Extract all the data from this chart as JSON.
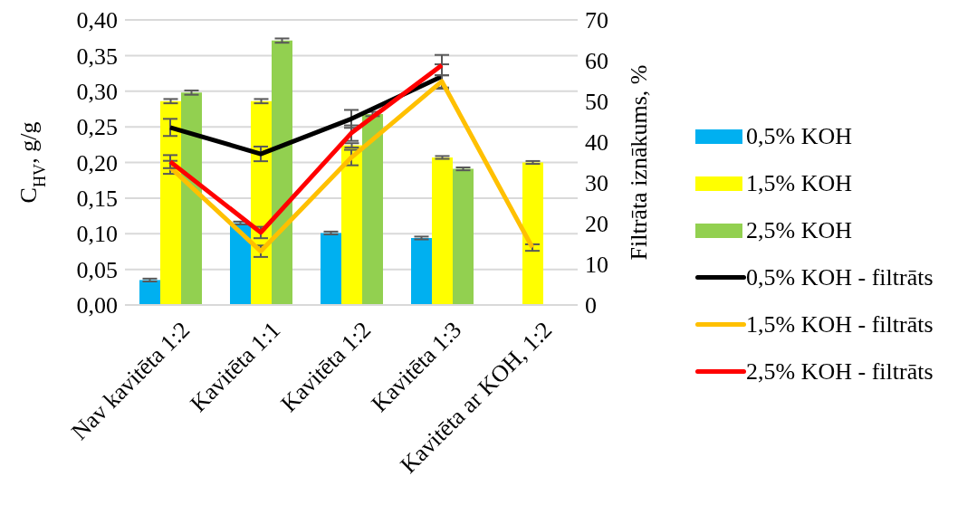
{
  "chart_data": {
    "type": "bar",
    "ylabel": "C$_{HV}$, g/g",
    "y2label": "Filtrāta iznākums, %",
    "categories": [
      "Nav kavitēta 1:2",
      "Kavitēta 1:1",
      "Kavitēta 1:2",
      "Kavitēta 1:3",
      "Kavitēta ar KOH, 1:2"
    ],
    "series": [
      {
        "name": "0,5% KOH",
        "color": "#00b0f0",
        "values": [
          0.035,
          0.115,
          0.101,
          0.094,
          null
        ],
        "errors": [
          0.002,
          0.002,
          0.002,
          0.002,
          null
        ]
      },
      {
        "name": "1,5% KOH",
        "color": "#ffff00",
        "values": [
          0.286,
          0.286,
          0.224,
          0.207,
          0.2
        ],
        "errors": [
          0.003,
          0.003,
          0.003,
          0.002,
          0.002
        ]
      },
      {
        "name": "2,5% KOH",
        "color": "#92d050",
        "values": [
          0.298,
          0.371,
          0.268,
          0.191,
          null
        ],
        "errors": [
          0.003,
          0.003,
          0.003,
          0.002,
          null
        ]
      },
      {
        "name": "0,5% KOH - filtrāts",
        "type": "line",
        "axis": "y2",
        "color": "#000000",
        "values": [
          43.6,
          37.1,
          45.7,
          56.1,
          null
        ],
        "errors": [
          2.1,
          1.8,
          2.2,
          3,
          null
        ]
      },
      {
        "name": "1,5% KOH - filtrāts",
        "type": "line",
        "axis": "y2",
        "color": "#ffc000",
        "values": [
          33.8,
          13.2,
          36.2,
          54.9,
          14.1
        ],
        "errors": [
          1.6,
          1.4,
          1.9,
          1.5,
          0.8
        ]
      },
      {
        "name": "2,5% KOH - filtrāts",
        "type": "line",
        "axis": "y2",
        "color": "#ff0000",
        "values": [
          35.2,
          17.8,
          42.2,
          58.9,
          null
        ],
        "errors": [
          1.6,
          1.4,
          1.9,
          2.5,
          null
        ]
      }
    ],
    "ylim": [
      0,
      0.4
    ],
    "yticks": [
      {
        "value": 0,
        "label": "0,00"
      },
      {
        "value": 0.05,
        "label": "0,05"
      },
      {
        "value": 0.1,
        "label": "0,10"
      },
      {
        "value": 0.15,
        "label": "0,15"
      },
      {
        "value": 0.2,
        "label": "0,20"
      },
      {
        "value": 0.25,
        "label": "0,25"
      },
      {
        "value": 0.3,
        "label": "0,30"
      },
      {
        "value": 0.35,
        "label": "0,35"
      },
      {
        "value": 0.4,
        "label": "0,40"
      }
    ],
    "y2lim": [
      0,
      70
    ],
    "y2ticks": [
      0,
      10,
      20,
      30,
      40,
      50,
      60,
      70
    ],
    "grid": "y",
    "legend": "right",
    "marker": "none",
    "line_style": "solid"
  }
}
